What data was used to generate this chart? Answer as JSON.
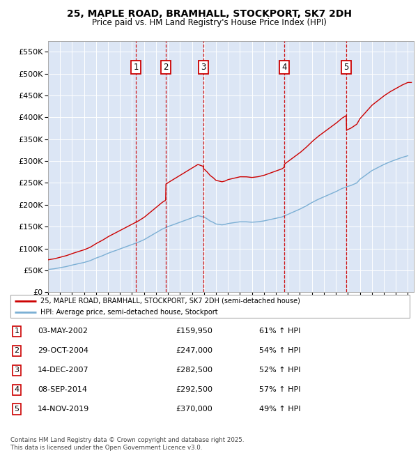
{
  "title": "25, MAPLE ROAD, BRAMHALL, STOCKPORT, SK7 2DH",
  "subtitle": "Price paid vs. HM Land Registry's House Price Index (HPI)",
  "ylim": [
    0,
    575000
  ],
  "yticks": [
    0,
    50000,
    100000,
    150000,
    200000,
    250000,
    300000,
    350000,
    400000,
    450000,
    500000,
    550000
  ],
  "ytick_labels": [
    "£0",
    "£50K",
    "£100K",
    "£150K",
    "£200K",
    "£250K",
    "£300K",
    "£350K",
    "£400K",
    "£450K",
    "£500K",
    "£550K"
  ],
  "bg_color": "#dce6f5",
  "red_line_color": "#cc0000",
  "blue_line_color": "#7bafd4",
  "legend_label_red": "25, MAPLE ROAD, BRAMHALL, STOCKPORT, SK7 2DH (semi-detached house)",
  "legend_label_blue": "HPI: Average price, semi-detached house, Stockport",
  "transactions": [
    {
      "num": 1,
      "date": "03-MAY-2002",
      "price": 159950,
      "pct": "61%",
      "x_year": 2002.33
    },
    {
      "num": 2,
      "date": "29-OCT-2004",
      "price": 247000,
      "pct": "54%",
      "x_year": 2004.83
    },
    {
      "num": 3,
      "date": "14-DEC-2007",
      "price": 282500,
      "pct": "52%",
      "x_year": 2007.95
    },
    {
      "num": 4,
      "date": "08-SEP-2014",
      "price": 292500,
      "pct": "57%",
      "x_year": 2014.69
    },
    {
      "num": 5,
      "date": "14-NOV-2019",
      "price": 370000,
      "pct": "49%",
      "x_year": 2019.87
    }
  ],
  "footer": "Contains HM Land Registry data © Crown copyright and database right 2025.\nThis data is licensed under the Open Government Licence v3.0.",
  "xmin": 1995,
  "xmax": 2025.5,
  "years_blue": [
    1995,
    1995.5,
    1996,
    1996.5,
    1997,
    1997.5,
    1998,
    1998.5,
    1999,
    1999.5,
    2000,
    2000.5,
    2001,
    2001.5,
    2002,
    2002.5,
    2003,
    2003.5,
    2004,
    2004.5,
    2005,
    2005.5,
    2006,
    2006.5,
    2007,
    2007.5,
    2008,
    2008.25,
    2008.5,
    2008.75,
    2009,
    2009.25,
    2009.5,
    2009.75,
    2010,
    2010.5,
    2011,
    2011.5,
    2012,
    2012.5,
    2013,
    2013.5,
    2014,
    2014.5,
    2015,
    2015.5,
    2016,
    2016.5,
    2017,
    2017.5,
    2018,
    2018.5,
    2019,
    2019.5,
    2020,
    2020.25,
    2020.5,
    2020.75,
    2021,
    2021.5,
    2022,
    2022.5,
    2023,
    2023.5,
    2024,
    2024.5,
    2025
  ],
  "vals_blue": [
    52000,
    53500,
    56000,
    58500,
    62000,
    65000,
    68000,
    72000,
    78000,
    83000,
    89000,
    94000,
    99000,
    104000,
    109000,
    114000,
    120000,
    128000,
    136000,
    144000,
    150000,
    155000,
    160000,
    165000,
    170000,
    175000,
    172000,
    168000,
    163000,
    160000,
    156000,
    155000,
    154000,
    155000,
    157000,
    159000,
    161000,
    161000,
    160000,
    161000,
    163000,
    166000,
    169000,
    172000,
    178000,
    184000,
    190000,
    197000,
    205000,
    212000,
    218000,
    224000,
    230000,
    237000,
    242000,
    244000,
    247000,
    250000,
    258000,
    268000,
    278000,
    285000,
    292000,
    298000,
    303000,
    308000,
    312000
  ]
}
